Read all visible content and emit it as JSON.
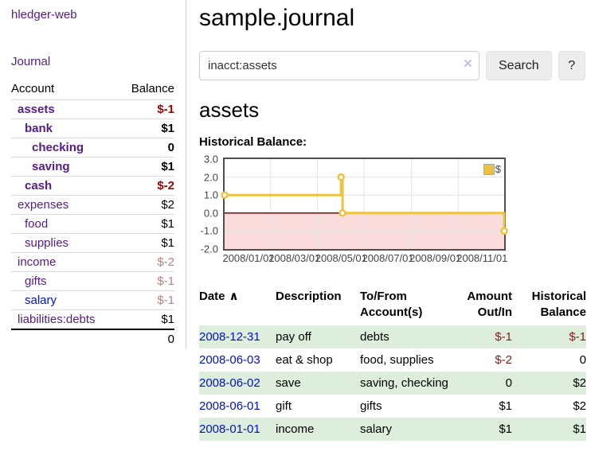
{
  "app": {
    "brand": "hledger-web"
  },
  "nav": {
    "journal": "Journal"
  },
  "sidebar": {
    "header": {
      "account": "Account",
      "balance": "Balance"
    },
    "accounts": [
      {
        "name": "assets",
        "depth": 1,
        "bold": true,
        "balance": "$-1",
        "balance_class": "neg-strong"
      },
      {
        "name": "bank",
        "depth": 2,
        "bold": true,
        "balance": "$1",
        "balance_class": ""
      },
      {
        "name": "checking",
        "depth": 3,
        "bold": true,
        "balance": "0",
        "balance_class": ""
      },
      {
        "name": "saving",
        "depth": 3,
        "bold": true,
        "balance": "$1",
        "balance_class": ""
      },
      {
        "name": "cash",
        "depth": 2,
        "bold": true,
        "balance": "$-2",
        "balance_class": "neg-strong"
      },
      {
        "name": "expenses",
        "depth": 1,
        "bold": false,
        "balance": "$2",
        "balance_class": ""
      },
      {
        "name": "food",
        "depth": 2,
        "bold": false,
        "balance": "$1",
        "balance_class": ""
      },
      {
        "name": "supplies",
        "depth": 2,
        "bold": false,
        "balance": "$1",
        "balance_class": ""
      },
      {
        "name": "income",
        "depth": 1,
        "bold": false,
        "balance": "$-2",
        "balance_class": "neg-soft"
      },
      {
        "name": "gifts",
        "depth": 2,
        "bold": false,
        "balance": "$-1",
        "balance_class": "neg-soft"
      },
      {
        "name": "salary",
        "depth": 2,
        "bold": false,
        "link": "blue",
        "balance": "$-1",
        "balance_class": "neg-soft"
      },
      {
        "name": "liabilities:debts",
        "depth": 1,
        "bold": false,
        "balance": "$1",
        "balance_class": ""
      }
    ],
    "total": "0"
  },
  "header": {
    "title": "sample.journal"
  },
  "search": {
    "value": "inacct:assets",
    "clear_icon": "×",
    "button": "Search",
    "help": "?"
  },
  "account_page": {
    "heading": "assets",
    "chart_title": "Historical Balance:"
  },
  "chart_data": {
    "type": "line",
    "step": true,
    "title": "Historical Balance",
    "legend": "$",
    "legend_position": "top-right",
    "series": [
      {
        "name": "$",
        "color": "#edc240",
        "points": [
          [
            "2008-01-01",
            1
          ],
          [
            "2008-06-01",
            2
          ],
          [
            "2008-06-03",
            0
          ],
          [
            "2008-12-31",
            -1
          ]
        ]
      }
    ],
    "xlim": [
      "2008-01-01",
      "2008-12-31"
    ],
    "ylim": [
      -2,
      3
    ],
    "x_ticks": [
      "2008/01/01",
      "2008/03/01",
      "2008/05/01",
      "2008/07/01",
      "2008/09/01",
      "2008/11/01"
    ],
    "y_ticks": [
      "3.0",
      "2.0",
      "1.0",
      "0.0",
      "-1.0",
      "-2.0"
    ],
    "grid": true,
    "gridline_color": "#e3e3e3",
    "zero_line_color": "#8b0000",
    "negative_region_color": "#fadcdc"
  },
  "register": {
    "sort_indicator": "∧",
    "columns": [
      {
        "label": "Date",
        "align": "left"
      },
      {
        "label": "Description",
        "align": "left"
      },
      {
        "label": "To/From Account(s)",
        "align": "left"
      },
      {
        "label": "Amount Out/In",
        "align": "right"
      },
      {
        "label": "Historical Balance",
        "align": "right"
      }
    ],
    "rows": [
      {
        "date": "2008-12-31",
        "description": "pay off",
        "accounts": "debts",
        "amount": "$-1",
        "amount_neg": true,
        "balance": "$-1",
        "balance_neg": true
      },
      {
        "date": "2008-06-03",
        "description": "eat & shop",
        "accounts": "food, supplies",
        "amount": "$-2",
        "amount_neg": true,
        "balance": "0",
        "balance_neg": false
      },
      {
        "date": "2008-06-02",
        "description": "save",
        "accounts": "saving, checking",
        "amount": "0",
        "amount_neg": false,
        "balance": "$2",
        "balance_neg": false
      },
      {
        "date": "2008-06-01",
        "description": "gift",
        "accounts": "gifts",
        "amount": "$1",
        "amount_neg": false,
        "balance": "$2",
        "balance_neg": false
      },
      {
        "date": "2008-01-01",
        "description": "income",
        "accounts": "salary",
        "amount": "$1",
        "amount_neg": false,
        "balance": "$1",
        "balance_neg": false
      }
    ]
  }
}
